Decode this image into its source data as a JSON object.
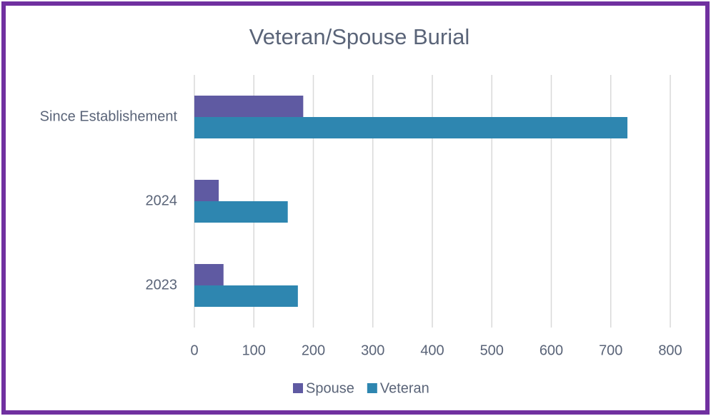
{
  "chart_data": {
    "type": "hbar",
    "title": "Veteran/Spouse Burial",
    "categories": [
      "Since Establishement",
      "2024",
      "2023"
    ],
    "series": [
      {
        "name": "Spouse",
        "color": "#5f5aa2",
        "values": [
          183,
          41,
          49
        ]
      },
      {
        "name": "Veteran",
        "color": "#2e86b0",
        "values": [
          728,
          157,
          174
        ]
      }
    ],
    "xlim": [
      0,
      800
    ],
    "xticks": [
      0,
      100,
      200,
      300,
      400,
      500,
      600,
      700,
      800
    ],
    "grid": true,
    "legend": "bottom"
  }
}
